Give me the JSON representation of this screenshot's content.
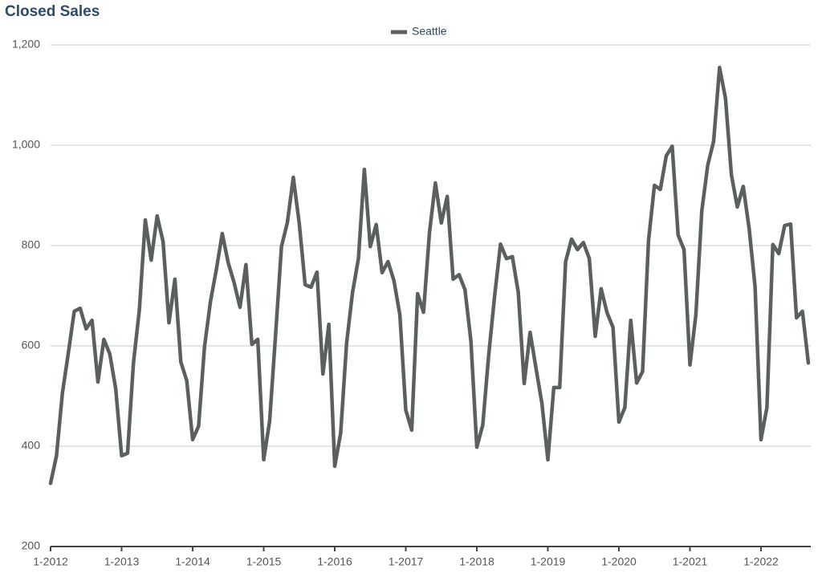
{
  "chart_data": {
    "type": "line",
    "title": "Closed Sales",
    "categories": [
      "1-2012",
      null,
      null,
      null,
      null,
      null,
      null,
      null,
      null,
      null,
      null,
      null,
      "1-2013",
      null,
      null,
      null,
      null,
      null,
      null,
      null,
      null,
      null,
      null,
      null,
      "1-2014",
      null,
      null,
      null,
      null,
      null,
      null,
      null,
      null,
      null,
      null,
      null,
      "1-2015",
      null,
      null,
      null,
      null,
      null,
      null,
      null,
      null,
      null,
      null,
      null,
      "1-2016",
      null,
      null,
      null,
      null,
      null,
      null,
      null,
      null,
      null,
      null,
      null,
      "1-2017",
      null,
      null,
      null,
      null,
      null,
      null,
      null,
      null,
      null,
      null,
      null,
      "1-2018",
      null,
      null,
      null,
      null,
      null,
      null,
      null,
      null,
      null,
      null,
      null,
      "1-2019",
      null,
      null,
      null,
      null,
      null,
      null,
      null,
      null,
      null,
      null,
      null,
      "1-2020",
      null,
      null,
      null,
      null,
      null,
      null,
      null,
      null,
      null,
      null,
      null,
      "1-2021",
      null,
      null,
      null,
      null,
      null,
      null,
      null,
      null,
      null,
      null,
      null,
      "1-2022",
      null,
      null,
      null,
      null,
      null,
      null,
      null,
      null
    ],
    "series": [
      {
        "name": "Seattle",
        "color": "#5a605e",
        "values": [
          326,
          381,
          506,
          586,
          669,
          675,
          634,
          651,
          528,
          613,
          584,
          515,
          381,
          386,
          566,
          672,
          851,
          771,
          859,
          808,
          646,
          733,
          568,
          531,
          413,
          440,
          598,
          688,
          752,
          824,
          766,
          726,
          677,
          762,
          603,
          613,
          373,
          450,
          621,
          798,
          846,
          936,
          845,
          722,
          717,
          747,
          544,
          643,
          360,
          426,
          605,
          706,
          774,
          952,
          798,
          842,
          746,
          768,
          730,
          662,
          472,
          432,
          704,
          667,
          826,
          925,
          845,
          898,
          733,
          742,
          712,
          610,
          398,
          442,
          581,
          699,
          803,
          774,
          778,
          707,
          525,
          627,
          555,
          485,
          373,
          517,
          517,
          768,
          813,
          792,
          806,
          774,
          619,
          714,
          666,
          637,
          448,
          477,
          651,
          526,
          549,
          810,
          920,
          912,
          979,
          998,
          821,
          792,
          562,
          662,
          869,
          960,
          1008,
          1155,
          1094,
          941,
          877,
          918,
          834,
          718,
          413,
          477,
          802,
          784,
          840,
          843,
          656,
          669,
          566
        ]
      }
    ],
    "ylim": [
      200,
      1200
    ],
    "yticks": [
      200,
      400,
      600,
      800,
      {
        "value": 1000,
        "label": "1,000"
      },
      {
        "value": 1200,
        "label": "1,200"
      }
    ],
    "grid": true,
    "legend": "top"
  }
}
